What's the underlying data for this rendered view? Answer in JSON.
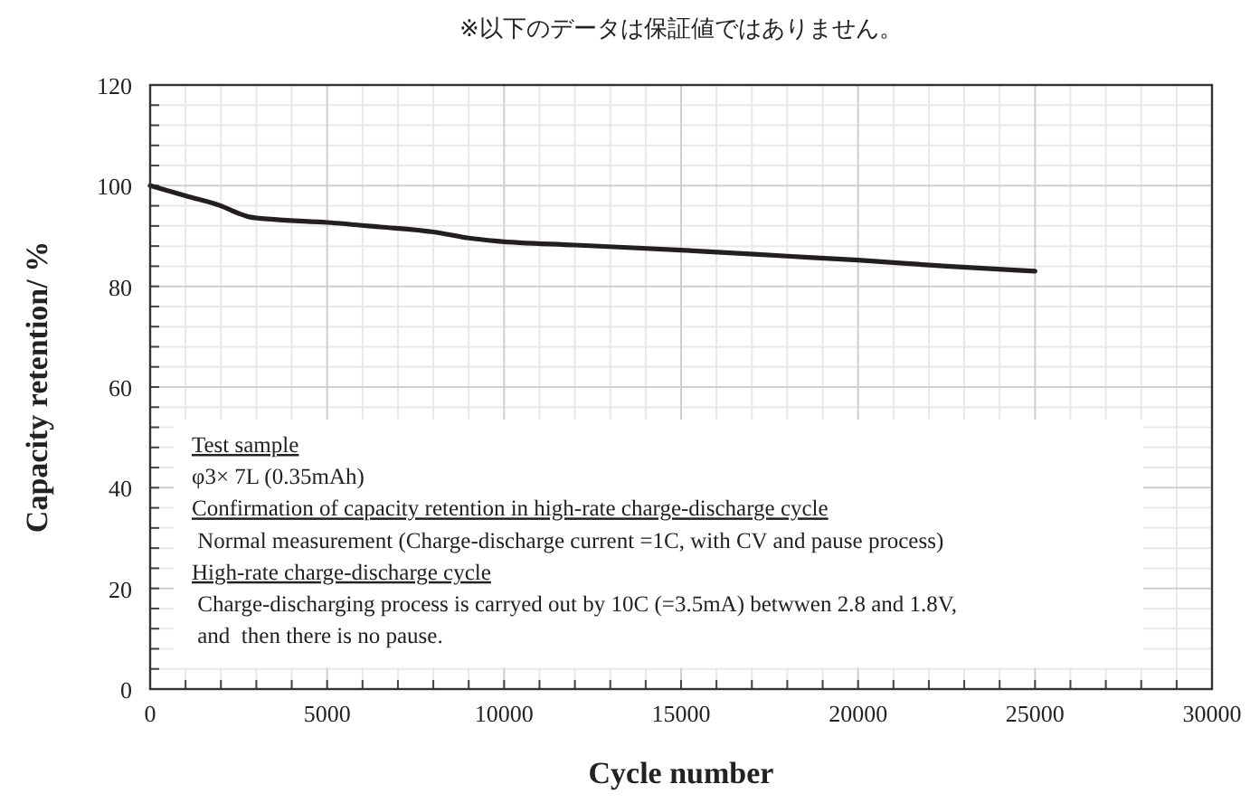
{
  "chart_data": {
    "type": "line",
    "title": "※以下のデータは保証値ではありません。",
    "xlabel": "Cycle number",
    "ylabel": "Capacity retention/ %",
    "x": [
      0,
      1000,
      2000,
      2500,
      2800,
      3500,
      5000,
      6500,
      8000,
      9000,
      9800,
      12000,
      15000,
      18000,
      20000,
      22500,
      25000
    ],
    "series": [
      {
        "color": "#231f20",
        "values": [
          100,
          98,
          96,
          94.5,
          93.8,
          93.3,
          92.7,
          91.8,
          90.8,
          89.6,
          89,
          88.2,
          87.2,
          86,
          85.2,
          84,
          83
        ]
      }
    ],
    "xlim": [
      0,
      30000
    ],
    "xticks": [
      0,
      5000,
      10000,
      15000,
      20000,
      25000,
      30000
    ],
    "ylim": [
      0,
      120
    ],
    "yticks": [
      0,
      20,
      40,
      60,
      80,
      100,
      120
    ],
    "grid": true,
    "annotations": [
      "Test sample",
      "φ3× 7L (0.35mAh)",
      "Confirmation of capacity retention in high-rate charge-discharge cycle",
      " Normal measurement (Charge-discharge current =1C, with CV and pause process)",
      "High-rate charge-discharge cycle",
      " Charge-discharging process is carryed out by 10C (=3.5mA) betwwen 2.8 and 1.8V,",
      " and  then there is no pause."
    ]
  }
}
